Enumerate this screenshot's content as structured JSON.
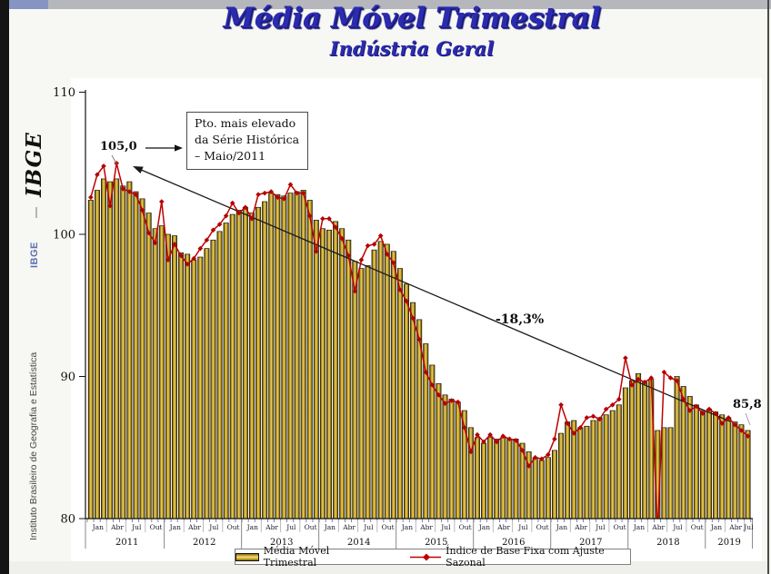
{
  "page": {
    "title": "Média Móvel Trimestral",
    "subtitle": "Indústria Geral"
  },
  "sidebar": {
    "logo_text": "IBGE",
    "brand_short": "IBGE",
    "brand_long": "Instituto Brasileiro de Geografia e Estatística"
  },
  "annotations": {
    "peak_value": "105,0",
    "peak_box_line1": "Pto. mais elevado",
    "peak_box_line2": "da Série Histórica",
    "peak_box_line3": "– Maio/2011",
    "decline_label": "-18,3%",
    "last_value": "85,8"
  },
  "chart_data": {
    "type": "bar",
    "title": "Média Móvel Trimestral",
    "subtitle": "Indústria Geral",
    "ylim": [
      80,
      110
    ],
    "yticks": [
      80,
      90,
      100,
      110
    ],
    "grid": false,
    "legend_position": "bottom",
    "x_start": "Jan/2011",
    "x_end": "Jul/2019",
    "quarter_labels": [
      "Jan",
      "Abr",
      "Jul",
      "Out"
    ],
    "years": [
      "2011",
      "2012",
      "2013",
      "2014",
      "2015",
      "2016",
      "2017",
      "2018",
      "2019"
    ],
    "colors": {
      "bar_gold": "#d9b425",
      "line_red": "#c00000",
      "trend_black": "#1a1a1a"
    },
    "series": [
      {
        "name": "Média Móvel Trimestral",
        "type": "bar",
        "values": [
          102.4,
          103.1,
          103.9,
          103.7,
          103.9,
          103.4,
          103.7,
          103.0,
          102.5,
          101.5,
          100.4,
          100.6,
          100.0,
          99.9,
          98.7,
          98.6,
          98.2,
          98.4,
          99.0,
          99.6,
          100.2,
          100.8,
          101.4,
          101.7,
          101.9,
          101.5,
          101.9,
          102.3,
          102.9,
          102.8,
          102.7,
          102.9,
          103.0,
          103.1,
          102.4,
          101.0,
          100.4,
          100.3,
          100.9,
          100.4,
          99.6,
          98.1,
          97.6,
          97.8,
          98.9,
          99.5,
          99.3,
          98.8,
          97.6,
          96.5,
          95.2,
          94.0,
          92.3,
          90.8,
          89.5,
          88.7,
          88.4,
          88.2,
          87.6,
          86.4,
          85.7,
          85.3,
          85.7,
          85.6,
          85.7,
          85.6,
          85.6,
          85.3,
          84.7,
          84.3,
          84.1,
          84.3,
          84.8,
          86.0,
          86.8,
          86.9,
          86.4,
          86.5,
          86.9,
          87.1,
          87.3,
          87.6,
          88.0,
          89.2,
          89.7,
          90.2,
          89.6,
          89.8,
          86.2,
          86.4,
          86.4,
          90.0,
          89.3,
          88.6,
          88.0,
          87.6,
          87.7,
          87.5,
          87.3,
          87.1,
          86.8,
          86.6,
          86.2
        ]
      },
      {
        "name": "Índice de Base Fixa com Ajuste Sazonal",
        "type": "line",
        "values": [
          102.6,
          104.2,
          104.8,
          102.0,
          105.0,
          103.2,
          103.0,
          102.8,
          101.7,
          100.1,
          99.4,
          102.3,
          98.2,
          99.3,
          98.5,
          97.9,
          98.3,
          99.0,
          99.6,
          100.3,
          100.7,
          101.3,
          102.2,
          101.5,
          101.9,
          101.1,
          102.8,
          102.9,
          103.0,
          102.6,
          102.5,
          103.5,
          102.9,
          102.9,
          101.3,
          98.8,
          101.1,
          101.1,
          100.5,
          99.7,
          98.5,
          96.0,
          98.2,
          99.2,
          99.3,
          99.9,
          98.6,
          98.0,
          96.1,
          95.3,
          94.1,
          92.6,
          90.3,
          89.4,
          88.7,
          88.1,
          88.3,
          88.2,
          86.4,
          84.7,
          85.9,
          85.4,
          85.9,
          85.4,
          85.8,
          85.6,
          85.5,
          84.8,
          83.7,
          84.3,
          84.2,
          84.5,
          85.6,
          88.0,
          86.7,
          86.0,
          86.4,
          87.1,
          87.2,
          87.0,
          87.7,
          88.0,
          88.4,
          91.3,
          89.4,
          89.8,
          89.6,
          89.9,
          79.0,
          90.3,
          89.9,
          89.7,
          88.4,
          87.6,
          87.9,
          87.4,
          87.7,
          87.4,
          86.7,
          87.1,
          86.6,
          86.2,
          85.8
        ]
      }
    ],
    "annotations": {
      "peak": {
        "label": "105,0",
        "month": "Maio/2011",
        "value": 105.0
      },
      "trend": {
        "label": "-18,3%"
      },
      "last": {
        "label": "85,8",
        "month": "Jul/2019",
        "value": 85.8
      }
    }
  }
}
